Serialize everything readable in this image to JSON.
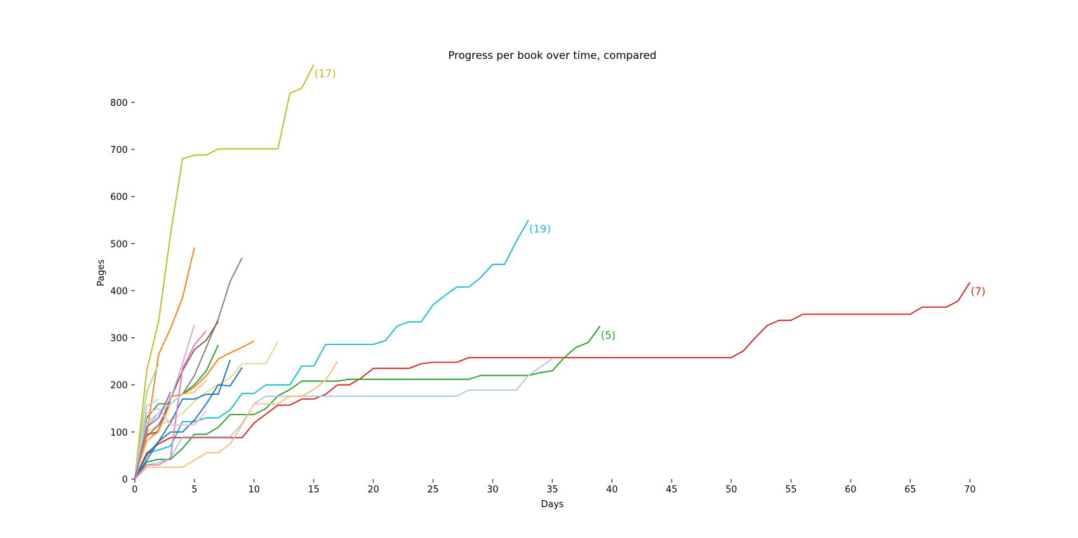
{
  "chart_data": {
    "type": "line",
    "title": "Progress per book over time, compared",
    "xlabel": "Days",
    "ylabel": "Pages",
    "xlim": [
      0,
      73
    ],
    "ylim": [
      0,
      880
    ],
    "xticks": [
      0,
      5,
      10,
      15,
      20,
      25,
      30,
      35,
      40,
      45,
      50,
      55,
      60,
      65,
      70
    ],
    "yticks": [
      0,
      100,
      200,
      300,
      400,
      500,
      600,
      700,
      800
    ],
    "grid": false,
    "legend": "none",
    "series": [
      {
        "color": "#bcbd22",
        "end_label": "(17)",
        "x": [
          0,
          1,
          2,
          3,
          4,
          5,
          6,
          7,
          8,
          9,
          10,
          11,
          12,
          13,
          14,
          15
        ],
        "y": [
          0,
          230,
          335,
          520,
          680,
          688,
          688,
          701,
          701,
          701,
          701,
          701,
          701,
          819,
          830,
          880
        ]
      },
      {
        "color": "#17becf",
        "end_label": "(19)",
        "x": [
          0,
          1,
          2,
          3,
          4,
          5,
          6,
          7,
          8,
          9,
          10,
          11,
          12,
          13,
          14,
          15,
          16,
          17,
          18,
          19,
          20,
          21,
          22,
          23,
          24,
          25,
          26,
          27,
          28,
          29,
          30,
          31,
          32,
          33
        ],
        "y": [
          0,
          55,
          62,
          70,
          122,
          122,
          130,
          130,
          147,
          182,
          182,
          200,
          200,
          200,
          240,
          240,
          286,
          286,
          286,
          286,
          286,
          294,
          325,
          334,
          334,
          370,
          390,
          408,
          408,
          428,
          456,
          456,
          506,
          550
        ]
      },
      {
        "color": "#d62728",
        "end_label": "(7)",
        "x": [
          0,
          1,
          2,
          3,
          4,
          5,
          6,
          7,
          8,
          9,
          10,
          11,
          12,
          13,
          14,
          15,
          16,
          17,
          18,
          19,
          20,
          21,
          22,
          23,
          24,
          25,
          26,
          27,
          28,
          29,
          30,
          31,
          32,
          33,
          34,
          35,
          36,
          37,
          38,
          39,
          40,
          41,
          42,
          43,
          44,
          45,
          46,
          47,
          48,
          49,
          50,
          51,
          52,
          53,
          54,
          55,
          56,
          57,
          58,
          59,
          60,
          61,
          62,
          63,
          64,
          65,
          66,
          67,
          68,
          69,
          70
        ],
        "y": [
          0,
          55,
          75,
          88,
          88,
          88,
          88,
          88,
          88,
          88,
          119,
          138,
          157,
          157,
          170,
          170,
          180,
          200,
          200,
          215,
          235,
          235,
          235,
          235,
          245,
          248,
          248,
          248,
          258,
          258,
          258,
          258,
          258,
          258,
          258,
          258,
          258,
          258,
          258,
          258,
          258,
          258,
          258,
          258,
          258,
          258,
          258,
          258,
          258,
          258,
          258,
          272,
          300,
          326,
          337,
          337,
          350,
          350,
          350,
          350,
          350,
          350,
          350,
          350,
          350,
          350,
          365,
          365,
          365,
          378,
          418
        ]
      },
      {
        "color": "#2ca02c",
        "end_label": "(5)",
        "x": [
          0,
          1,
          2,
          3,
          4,
          5,
          6,
          7,
          8,
          9,
          10,
          11,
          12,
          13,
          14,
          15,
          16,
          17,
          18,
          19,
          20,
          21,
          22,
          23,
          24,
          25,
          26,
          27,
          28,
          29,
          30,
          31,
          32,
          33,
          34,
          35,
          36,
          37,
          38,
          39
        ],
        "y": [
          0,
          36,
          42,
          42,
          65,
          95,
          95,
          110,
          137,
          137,
          137,
          150,
          177,
          190,
          208,
          208,
          208,
          208,
          212,
          212,
          212,
          212,
          212,
          212,
          212,
          212,
          212,
          212,
          212,
          220,
          220,
          220,
          220,
          220,
          226,
          230,
          258,
          280,
          290,
          325
        ]
      },
      {
        "color": "#aec7e8",
        "x": [
          0,
          1,
          2,
          3,
          4,
          5,
          6,
          7,
          8,
          9,
          10,
          11,
          12,
          13,
          14,
          15,
          16,
          17,
          18,
          19,
          20,
          21,
          22,
          23,
          24,
          25,
          26,
          27,
          28,
          29,
          30,
          31,
          32,
          33,
          34,
          35
        ],
        "y": [
          0,
          30,
          35,
          45,
          90,
          90,
          90,
          90,
          90,
          118,
          160,
          176,
          176,
          176,
          176,
          176,
          176,
          176,
          176,
          176,
          176,
          176,
          176,
          176,
          176,
          176,
          176,
          176,
          189,
          189,
          189,
          189,
          189,
          220,
          238,
          255
        ]
      },
      {
        "color": "#ffbb78",
        "x": [
          0,
          1,
          2,
          3,
          4,
          5,
          6,
          7,
          8,
          9,
          10,
          11,
          12,
          13,
          14,
          15,
          16,
          17
        ],
        "y": [
          0,
          25,
          25,
          25,
          25,
          40,
          56,
          56,
          75,
          115,
          160,
          160,
          160,
          176,
          176,
          190,
          210,
          250
        ]
      },
      {
        "color": "#dbdb8d",
        "x": [
          0,
          1,
          2,
          3,
          4,
          5,
          6,
          7,
          8,
          9,
          10,
          11,
          12
        ],
        "y": [
          0,
          100,
          115,
          125,
          140,
          165,
          185,
          200,
          215,
          245,
          245,
          245,
          292
        ]
      },
      {
        "color": "#ff7f0e",
        "x": [
          0,
          1,
          2,
          3,
          4,
          5,
          6,
          7,
          8,
          9,
          10
        ],
        "y": [
          0,
          80,
          105,
          175,
          180,
          195,
          220,
          255,
          268,
          280,
          293
        ]
      },
      {
        "color": "#1f77b4",
        "x": [
          0,
          1,
          2,
          3,
          4,
          5,
          6,
          7,
          8,
          9
        ],
        "y": [
          0,
          40,
          80,
          100,
          100,
          125,
          160,
          200,
          198,
          237
        ]
      },
      {
        "color": "#1f77b4",
        "x": [
          0,
          1,
          2,
          3,
          4,
          5,
          6,
          7,
          8
        ],
        "y": [
          0,
          50,
          80,
          120,
          170,
          170,
          180,
          180,
          253
        ]
      },
      {
        "color": "#7f7f7f",
        "x": [
          0,
          1,
          2,
          3,
          4,
          5,
          6,
          7,
          8,
          9
        ],
        "y": [
          0,
          90,
          115,
          160,
          180,
          220,
          280,
          340,
          420,
          470
        ]
      },
      {
        "color": "#2ca02c",
        "x": [
          0,
          1,
          2,
          3,
          4,
          5,
          6,
          7
        ],
        "y": [
          0,
          130,
          160,
          160,
          180,
          200,
          230,
          285
        ]
      },
      {
        "color": "#8c564b",
        "x": [
          0,
          1,
          2,
          3,
          4,
          5,
          6,
          7
        ],
        "y": [
          0,
          95,
          100,
          170,
          230,
          275,
          295,
          335
        ]
      },
      {
        "color": "#e377c2",
        "x": [
          0,
          1,
          2,
          3,
          4,
          5,
          6
        ],
        "y": [
          0,
          30,
          30,
          45,
          235,
          285,
          315
        ]
      },
      {
        "color": "#c5b0d5",
        "x": [
          0,
          1,
          2,
          3,
          4,
          5
        ],
        "y": [
          0,
          110,
          140,
          170,
          245,
          328
        ]
      },
      {
        "color": "#ff7f0e",
        "x": [
          0,
          1,
          2,
          3,
          4,
          5
        ],
        "y": [
          0,
          95,
          265,
          320,
          385,
          492
        ]
      },
      {
        "color": "#f7b6d2",
        "x": [
          0,
          1,
          2,
          3,
          4,
          5,
          6
        ],
        "y": [
          0,
          140,
          150,
          115,
          115,
          115,
          145
        ]
      },
      {
        "color": "#ffbb78",
        "x": [
          0,
          1,
          2,
          3,
          4,
          5,
          6
        ],
        "y": [
          0,
          80,
          100,
          160,
          180,
          185,
          210
        ]
      },
      {
        "color": "#98df8a",
        "x": [
          0,
          1,
          2
        ],
        "y": [
          0,
          185,
          245
        ]
      },
      {
        "color": "#c7c7c7",
        "x": [
          0,
          1,
          2
        ],
        "y": [
          0,
          155,
          170
        ]
      },
      {
        "color": "#9edae5",
        "x": [
          0,
          1,
          2,
          3,
          4
        ],
        "y": [
          0,
          120,
          140,
          160,
          180
        ]
      },
      {
        "color": "#9467bd",
        "x": [
          0,
          1,
          2,
          3
        ],
        "y": [
          0,
          110,
          130,
          185
        ]
      }
    ]
  }
}
